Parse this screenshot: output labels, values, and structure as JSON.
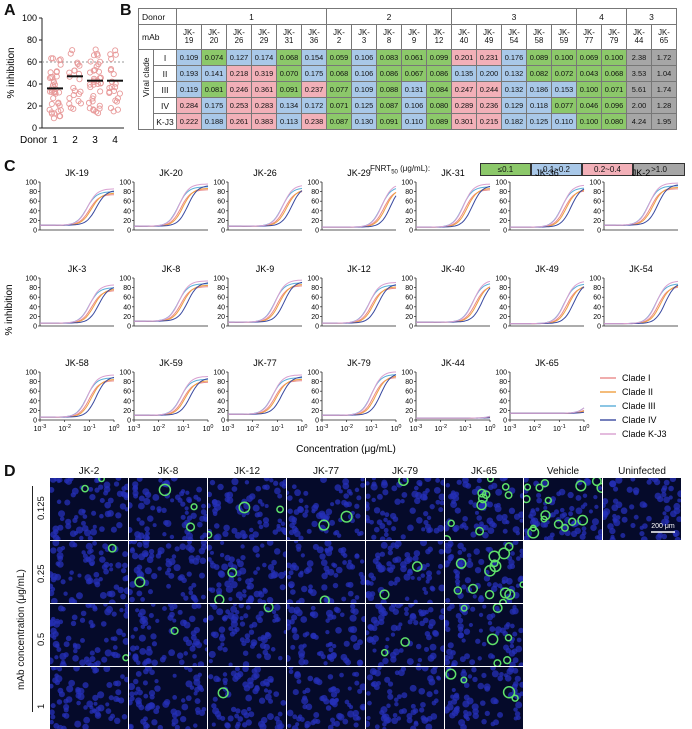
{
  "panels": {
    "A": "A",
    "B": "B",
    "C": "C",
    "D": "D"
  },
  "panelA": {
    "ylabel": "% inhibition",
    "xlabel": "Donor",
    "donors": [
      "1",
      "2",
      "3",
      "4"
    ],
    "yticks": [
      "0",
      "20",
      "40",
      "60",
      "80",
      "100"
    ],
    "means": [
      36,
      47,
      43,
      43
    ],
    "dashed_line": 60,
    "ylim": [
      0,
      100
    ]
  },
  "panelB": {
    "donor_label": "Donor",
    "mab_label": "mAb",
    "clade_label": "Viral clade",
    "donor_groups": [
      {
        "label": "1",
        "span": 6
      },
      {
        "label": "2",
        "span": 5
      },
      {
        "label": "3",
        "span": 5
      },
      {
        "label": "4",
        "span": 2
      },
      {
        "label": "3",
        "span": 2
      }
    ],
    "mabs": [
      "JK-19",
      "JK-20",
      "JK-26",
      "JK-29",
      "JK-31",
      "JK-36",
      "JK-2",
      "JK-3",
      "JK-8",
      "JK-9",
      "JK-12",
      "JK-40",
      "JK-49",
      "JK-54",
      "JK-58",
      "JK-59",
      "JK-77",
      "JK-79",
      "JK-44",
      "JK-65"
    ],
    "rows": [
      {
        "clade": "I",
        "values": [
          "0.109",
          "0.074",
          "0.127",
          "0.174",
          "0.068",
          "0.154",
          "0.059",
          "0.106",
          "0.083",
          "0.061",
          "0.099",
          "0.201",
          "0.231",
          "0.176",
          "0.089",
          "0.100",
          "0.069",
          "0.100",
          "2.38",
          "1.72"
        ]
      },
      {
        "clade": "II",
        "values": [
          "0.193",
          "0.141",
          "0.218",
          "0.319",
          "0.070",
          "0.175",
          "0.068",
          "0.106",
          "0.086",
          "0.067",
          "0.086",
          "0.135",
          "0.200",
          "0.132",
          "0.082",
          "0.072",
          "0.043",
          "0.068",
          "3.53",
          "1.04"
        ]
      },
      {
        "clade": "III",
        "values": [
          "0.119",
          "0.081",
          "0.246",
          "0.361",
          "0.091",
          "0.237",
          "0.077",
          "0.109",
          "0.088",
          "0.131",
          "0.084",
          "0.247",
          "0.244",
          "0.132",
          "0.186",
          "0.153",
          "0.100",
          "0.071",
          "5.61",
          "1.74"
        ]
      },
      {
        "clade": "IV",
        "values": [
          "0.284",
          "0.175",
          "0.253",
          "0.283",
          "0.134",
          "0.172",
          "0.071",
          "0.125",
          "0.087",
          "0.106",
          "0.080",
          "0.289",
          "0.236",
          "0.129",
          "0.118",
          "0.077",
          "0.046",
          "0.096",
          "2.00",
          "1.28"
        ]
      },
      {
        "clade": "K-J3",
        "values": [
          "0.222",
          "0.188",
          "0.261",
          "0.383",
          "0.113",
          "0.238",
          "0.087",
          "0.130",
          "0.091",
          "0.110",
          "0.089",
          "0.301",
          "0.215",
          "0.182",
          "0.125",
          "0.110",
          "0.100",
          "0.080",
          "4.24",
          "1.95"
        ]
      }
    ],
    "legend_title": "FNRT",
    "legend_sub": "50",
    "legend_unit": " (μg/mL):",
    "legend_items": [
      {
        "label": "≤0.1",
        "color": "#8cc86a"
      },
      {
        "label": "0.1~0.2",
        "color": "#a9c8e8"
      },
      {
        "label": "0.2~0.4",
        "color": "#f2b0b8"
      },
      {
        "label": ">1.0",
        "color": "#a6a6a6"
      }
    ]
  },
  "panelC": {
    "ylabel": "% inhibition",
    "xlabel": "Concentration (μg/mL)",
    "yticks": [
      "0",
      "20",
      "40",
      "60",
      "80",
      "100"
    ],
    "xticks_base": "10",
    "xticks_exp": [
      "-3",
      "-2",
      "-1",
      "0"
    ],
    "plots": [
      "JK-19",
      "JK-20",
      "JK-26",
      "JK-29",
      "JK-31",
      "JK-36",
      "JK-2",
      "JK-3",
      "JK-8",
      "JK-9",
      "JK-12",
      "JK-40",
      "JK-49",
      "JK-54",
      "JK-58",
      "JK-59",
      "JK-77",
      "JK-79",
      "JK-44",
      "JK-65"
    ],
    "legend": [
      {
        "label": "Clade I",
        "color": "#e98a8a"
      },
      {
        "label": "Clade II",
        "color": "#f0a040"
      },
      {
        "label": "Clade III",
        "color": "#5aaed8"
      },
      {
        "label": "Clade IV",
        "color": "#3a4aa0"
      },
      {
        "label": "Clade K-J3",
        "color": "#d9a0d0"
      }
    ]
  },
  "panelD": {
    "columns": [
      "JK-2",
      "JK-8",
      "JK-12",
      "JK-77",
      "JK-79",
      "JK-65",
      "Vehicle",
      "Uninfected"
    ],
    "rows": [
      "0.125",
      "0.25",
      "0.5",
      "1"
    ],
    "ylabel": "mAb concentration (μg/mL)",
    "scalebar": "200 μm"
  }
}
